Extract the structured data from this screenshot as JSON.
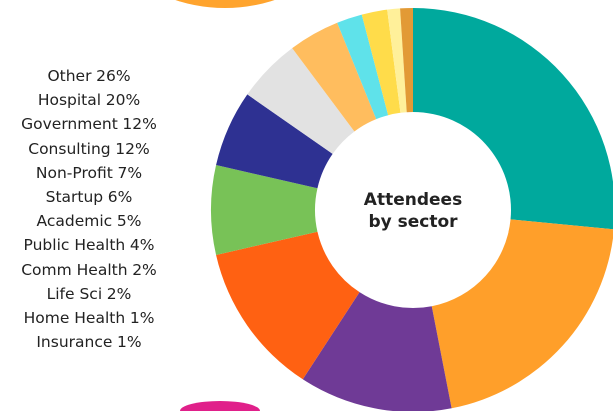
{
  "chart_data": {
    "type": "donut",
    "center_text": [
      "Attendees",
      "by sector"
    ],
    "categories": [
      "Other",
      "Hospital",
      "Government",
      "Consulting",
      "Non-Profit",
      "Startup",
      "Academic",
      "Public Health",
      "Comm Health",
      "Life Sci",
      "Home Health",
      "Insurance"
    ],
    "values": [
      26,
      20,
      12,
      12,
      7,
      6,
      5,
      4,
      2,
      2,
      1,
      1
    ],
    "value_labels": [
      "26%",
      "20%",
      "12%",
      "12%",
      "7%",
      "6%",
      "5%",
      "4%",
      "2%",
      "2%",
      "1%",
      "1%"
    ],
    "colors": [
      "#00a99d",
      "#ff9f2a",
      "#6f3a96",
      "#ff6112",
      "#78c257",
      "#2e3192",
      "#e2e2e2",
      "#ffbd5e",
      "#5fe2ea",
      "#ffdc4a",
      "#fff09a",
      "#e29a35"
    ]
  }
}
